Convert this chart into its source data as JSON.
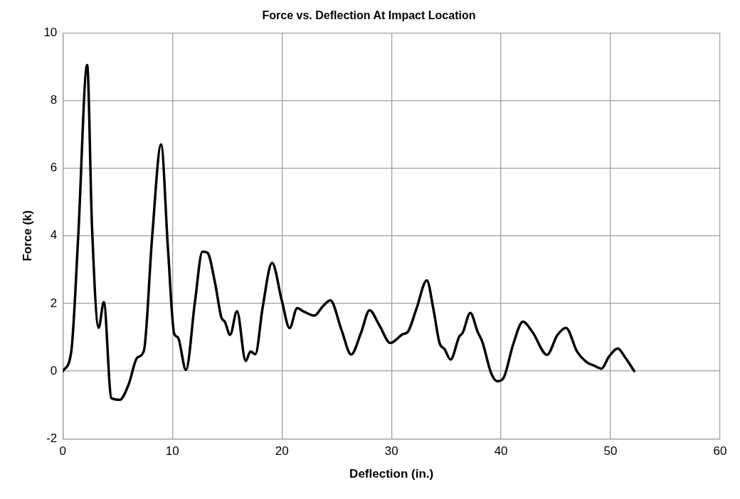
{
  "chart_data": {
    "type": "line",
    "title": "Force vs. Deflection At Impact Location",
    "xlabel": "Deflection (in.)",
    "ylabel": "Force (k)",
    "xlim": [
      0,
      60
    ],
    "xticks": [
      0,
      10,
      20,
      30,
      40,
      50,
      60
    ],
    "ylim": [
      -2,
      10
    ],
    "yticks": [
      -2,
      0,
      2,
      4,
      6,
      8,
      10
    ],
    "grid": true,
    "legend": false,
    "marker": "none",
    "line_style": "solid",
    "series": [
      {
        "color": "#000000",
        "x": [
          0,
          0.77,
          1.4,
          2.22,
          2.66,
          3.27,
          3.74,
          4.43,
          5.2,
          6.0,
          6.8,
          7.4,
          8.15,
          8.97,
          9.6,
          10.17,
          10.5,
          11.24,
          12.07,
          12.74,
          13.2,
          13.9,
          14.46,
          14.8,
          15.27,
          15.9,
          16.69,
          17.13,
          17.58,
          18.24,
          19.1,
          20.0,
          20.7,
          21.39,
          22.0,
          22.96,
          23.75,
          24.42,
          25.43,
          26.32,
          27.22,
          28.0,
          28.9,
          29.9,
          31.03,
          31.5,
          32.27,
          33.23,
          33.83,
          34.39,
          34.84,
          35.4,
          36.19,
          36.5,
          37.2,
          37.87,
          38.3,
          39.1,
          39.66,
          40.22,
          41.12,
          42.0,
          42.9,
          44.2,
          45.14,
          45.93,
          46.94,
          47.83,
          48.5,
          49.17,
          49.84,
          50.67,
          51.3,
          52.16
        ],
        "values": [
          0,
          0.58,
          3.95,
          9.05,
          4.3,
          1.28,
          2.04,
          -0.8,
          -0.85,
          -0.4,
          0.4,
          0.6,
          3.95,
          6.7,
          3.6,
          1.1,
          1.0,
          0.03,
          2.07,
          3.53,
          3.5,
          2.6,
          1.6,
          1.45,
          1.07,
          1.77,
          0.3,
          0.58,
          0.5,
          1.88,
          3.2,
          2.07,
          1.27,
          1.86,
          1.76,
          1.64,
          1.92,
          2.09,
          1.23,
          0.49,
          1.13,
          1.8,
          1.35,
          0.83,
          1.09,
          1.16,
          1.83,
          2.68,
          1.83,
          0.83,
          0.65,
          0.34,
          1.02,
          1.13,
          1.72,
          1.16,
          0.86,
          -0.06,
          -0.3,
          -0.21,
          0.8,
          1.46,
          1.14,
          0.48,
          1.06,
          1.28,
          0.58,
          0.26,
          0.16,
          0.07,
          0.42,
          0.67,
          0.42,
          0
        ]
      }
    ]
  }
}
